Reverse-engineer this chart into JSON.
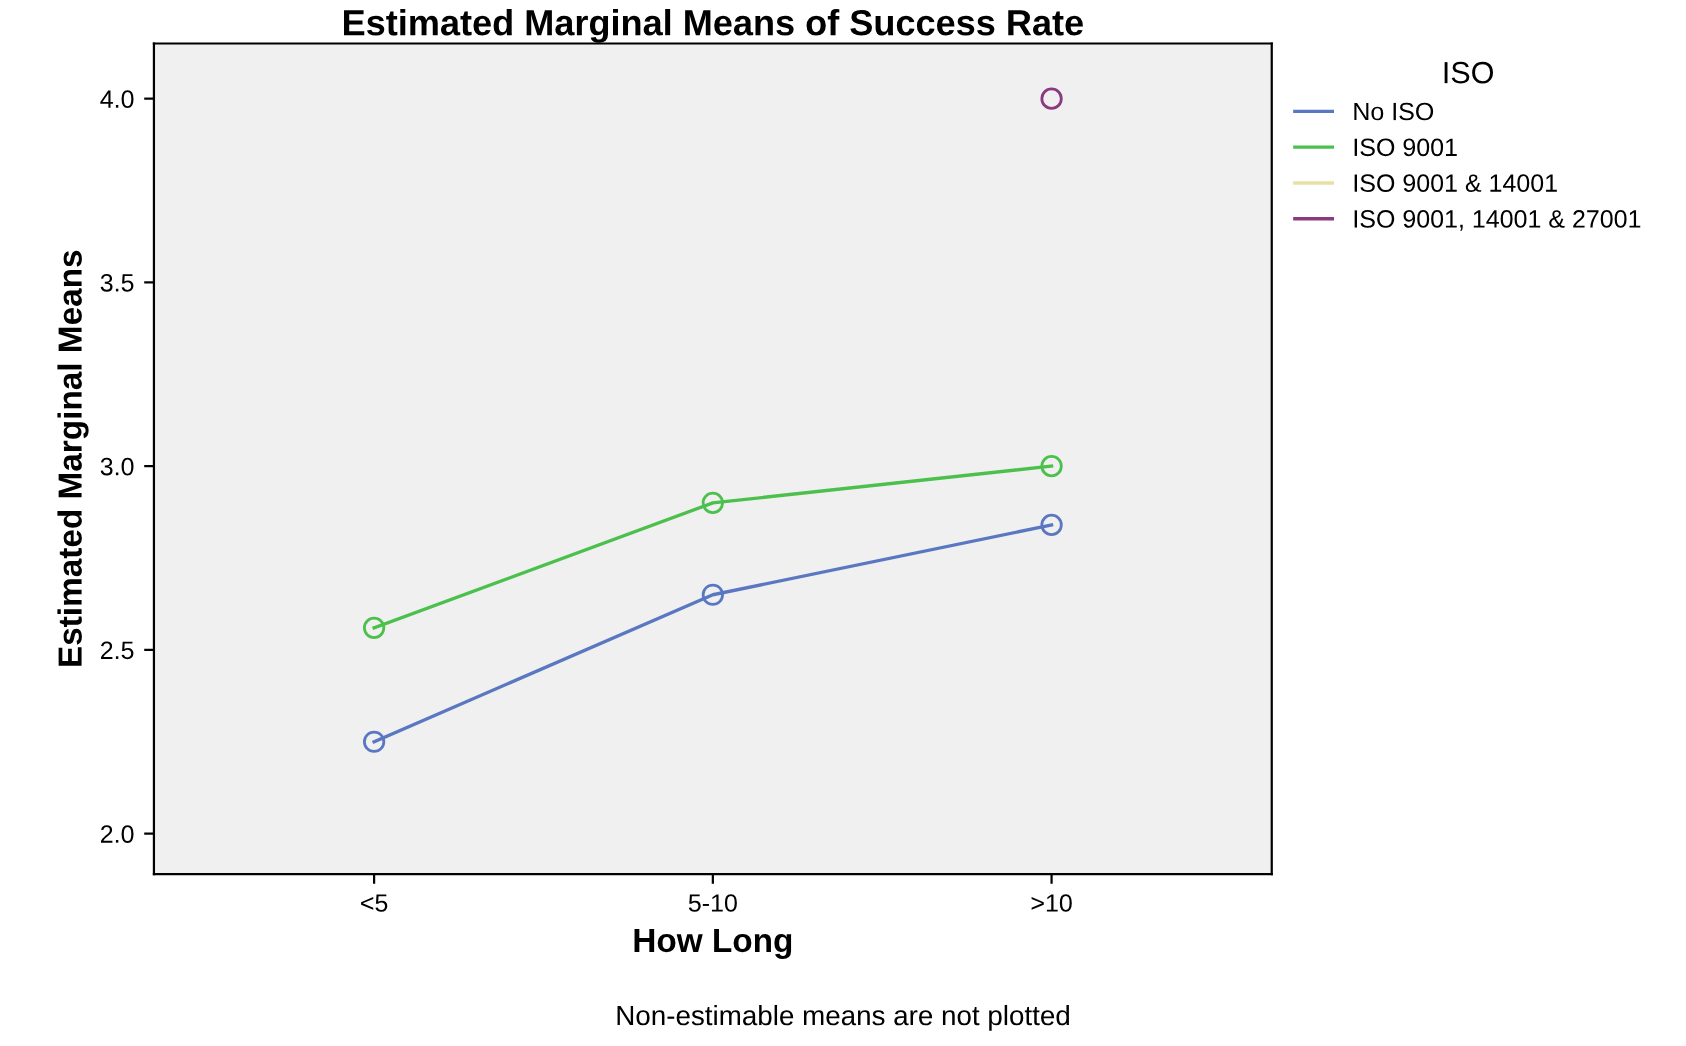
{
  "chart_data": {
    "type": "line",
    "title": "Estimated Marginal Means of Success Rate",
    "xlabel": "How Long",
    "ylabel": "Estimated Marginal Means",
    "legend_title": "ISO",
    "categories": [
      "<5",
      "5-10",
      ">10"
    ],
    "series": [
      {
        "name": "No ISO",
        "color": "#5a77c2",
        "values": [
          2.25,
          2.65,
          2.84
        ]
      },
      {
        "name": "ISO 9001",
        "color": "#4cc04c",
        "values": [
          2.56,
          2.9,
          3.0
        ]
      },
      {
        "name": "ISO 9001 & 14001",
        "color": "#e6e2a6",
        "values": [
          null,
          null,
          null
        ]
      },
      {
        "name": "ISO 9001, 14001 & 27001",
        "color": "#8a3a80",
        "values": [
          null,
          null,
          4.0
        ]
      }
    ],
    "ylim": [
      1.89,
      4.15
    ],
    "yticks": [
      {
        "value": 2,
        "label": "2.0"
      },
      {
        "value": 2.5,
        "label": "2.5"
      },
      {
        "value": 3,
        "label": "3.0"
      },
      {
        "value": 3.5,
        "label": "3.5"
      },
      {
        "value": 4,
        "label": "4.0"
      }
    ],
    "marker": "circle",
    "legend": "right",
    "grid": false,
    "annotations": [
      "Non-estimable means are not plotted"
    ]
  }
}
